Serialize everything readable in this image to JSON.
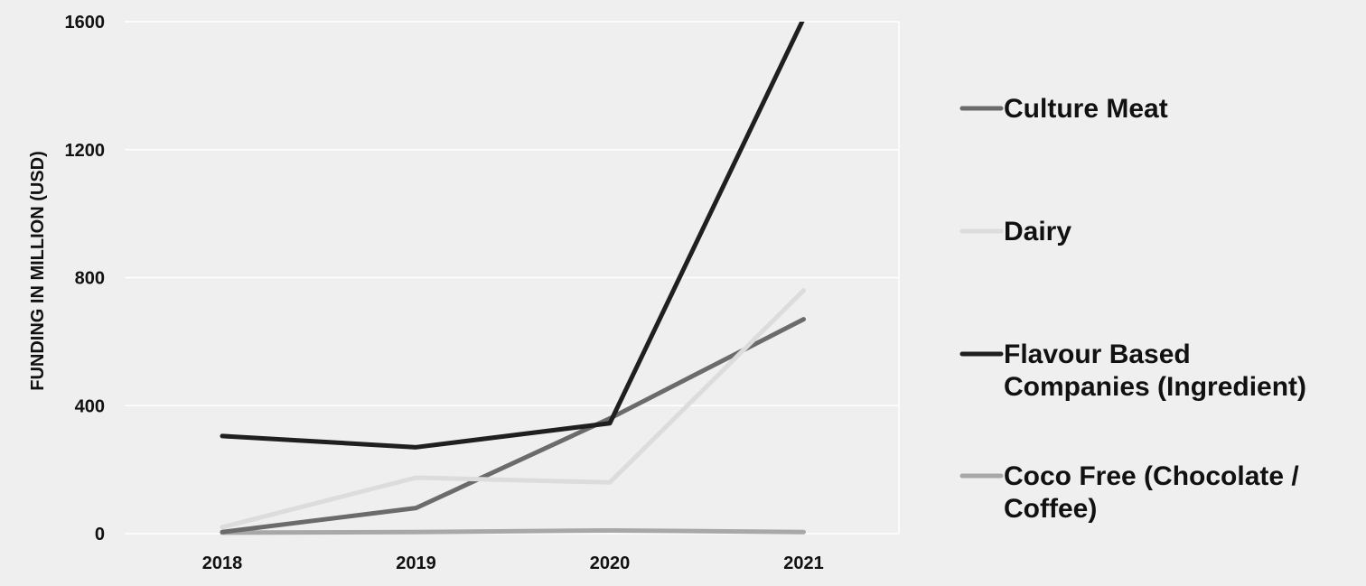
{
  "chart_data": {
    "type": "line",
    "categories": [
      "2018",
      "2019",
      "2020",
      "2021"
    ],
    "ylabel": "FUNDING IN MILLION (USD)",
    "ylim": [
      0,
      1600
    ],
    "yticks": [
      0,
      400,
      800,
      1200,
      1600
    ],
    "grid": true,
    "legend_position": "right",
    "series": [
      {
        "name_lines": [
          "Culture Meat"
        ],
        "color": "#6b6b6b",
        "values": [
          5,
          80,
          360,
          670
        ]
      },
      {
        "name_lines": [
          "Dairy"
        ],
        "color": "#dcdcdc",
        "values": [
          20,
          175,
          160,
          760
        ]
      },
      {
        "name_lines": [
          "Flavour Based",
          "Companies (Ingredient)"
        ],
        "color": "#1f1f1f",
        "values": [
          305,
          270,
          345,
          1610
        ]
      },
      {
        "name_lines": [
          "Coco Free (Chocolate /",
          "Coffee)"
        ],
        "color": "#a8a8a8",
        "values": [
          3,
          5,
          10,
          5
        ]
      }
    ]
  }
}
